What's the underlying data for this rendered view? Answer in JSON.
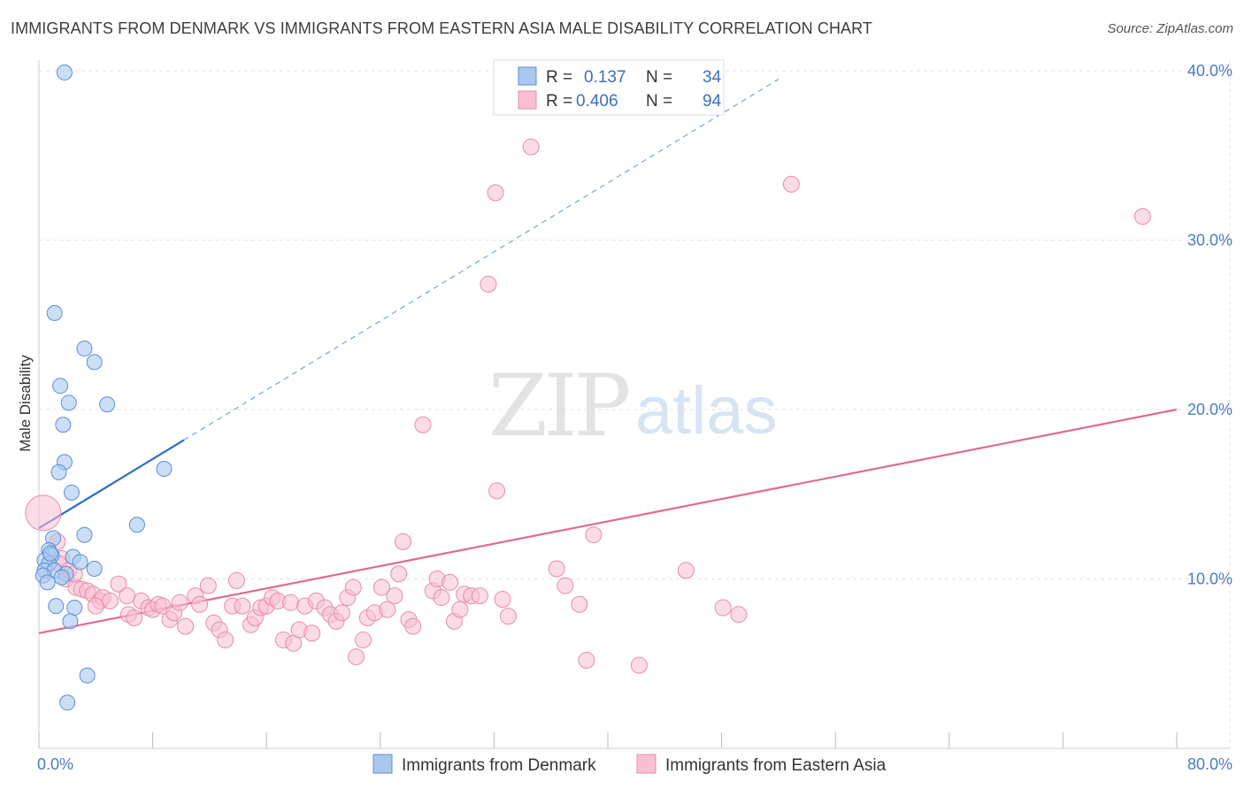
{
  "title": "IMMIGRANTS FROM DENMARK VS IMMIGRANTS FROM EASTERN ASIA MALE DISABILITY CORRELATION CHART",
  "source": "Source: ZipAtlas.com",
  "watermark": {
    "zip": "ZIP",
    "atlas": "atlas"
  },
  "legend": {
    "denmark": {
      "r_label": "R =",
      "r_value": "0.137",
      "n_label": "N =",
      "n_value": "34"
    },
    "eastasia": {
      "r_label": "R =",
      "r_value": "0.406",
      "n_label": "N =",
      "n_value": "94"
    }
  },
  "colors": {
    "denmark_fill": "#aac8ee",
    "denmark_stroke": "#5b8fd6",
    "denmark_line": "#2b6cc4",
    "eastasia_fill": "#f8c0d2",
    "eastasia_stroke": "#e88aaa",
    "eastasia_line": "#e06a94",
    "grid": "#e2e2e2",
    "tick_label": "#4a7cc2"
  },
  "chart_data": {
    "type": "scatter",
    "title": "IMMIGRANTS FROM DENMARK VS IMMIGRANTS FROM EASTERN ASIA MALE DISABILITY CORRELATION CHART",
    "xlabel": "",
    "ylabel": "Male Disability",
    "xlim": [
      0,
      80
    ],
    "ylim": [
      0,
      42
    ],
    "x_ticks": [
      0,
      8,
      16,
      24,
      32,
      40,
      48,
      56,
      64,
      72,
      80
    ],
    "x_tick_labels": {
      "0": "0.0%",
      "80": "80.0%"
    },
    "y_ticks": [
      10,
      20,
      30,
      40
    ],
    "y_tick_labels": [
      "10.0%",
      "20.0%",
      "30.0%",
      "40.0%"
    ],
    "grid": true,
    "legend_position": "top-center",
    "series": [
      {
        "name": "Immigrants from Denmark",
        "trend": {
          "x": [
            0,
            10.2
          ],
          "y": [
            13.0,
            18.2
          ],
          "extend_to": [
            52,
            39.5
          ]
        },
        "points": [
          [
            1.8,
            39.9
          ],
          [
            1.1,
            25.7
          ],
          [
            3.2,
            23.6
          ],
          [
            3.9,
            22.8
          ],
          [
            1.5,
            21.4
          ],
          [
            2.1,
            20.4
          ],
          [
            4.8,
            20.3
          ],
          [
            1.7,
            19.1
          ],
          [
            1.8,
            16.9
          ],
          [
            8.8,
            16.5
          ],
          [
            1.4,
            16.3
          ],
          [
            2.3,
            15.1
          ],
          [
            6.9,
            13.2
          ],
          [
            3.2,
            12.6
          ],
          [
            1.0,
            12.4
          ],
          [
            0.7,
            11.7
          ],
          [
            0.9,
            11.4
          ],
          [
            2.4,
            11.3
          ],
          [
            0.4,
            11.1
          ],
          [
            2.9,
            11.0
          ],
          [
            0.7,
            10.9
          ],
          [
            0.4,
            10.5
          ],
          [
            3.9,
            10.6
          ],
          [
            1.1,
            10.5
          ],
          [
            1.9,
            10.3
          ],
          [
            0.3,
            10.2
          ],
          [
            1.6,
            10.1
          ],
          [
            0.6,
            9.8
          ],
          [
            1.2,
            8.4
          ],
          [
            2.5,
            8.3
          ],
          [
            2.2,
            7.5
          ],
          [
            3.4,
            4.3
          ],
          [
            2.0,
            2.7
          ],
          [
            0.8,
            11.5
          ]
        ]
      },
      {
        "name": "Immigrants from Eastern Asia",
        "trend": {
          "x": [
            0,
            80
          ],
          "y": [
            6.8,
            20.0
          ]
        },
        "points": [
          [
            0.3,
            13.9
          ],
          [
            1.3,
            12.2
          ],
          [
            1.6,
            11.2
          ],
          [
            1.4,
            10.9
          ],
          [
            2.1,
            10.5
          ],
          [
            1.9,
            10.0
          ],
          [
            2.6,
            9.5
          ],
          [
            3.0,
            9.4
          ],
          [
            3.4,
            9.3
          ],
          [
            3.8,
            9.1
          ],
          [
            4.3,
            8.7
          ],
          [
            4.5,
            8.9
          ],
          [
            4.0,
            8.4
          ],
          [
            5.0,
            8.7
          ],
          [
            5.6,
            9.7
          ],
          [
            6.2,
            9.0
          ],
          [
            6.3,
            7.9
          ],
          [
            6.7,
            7.7
          ],
          [
            7.2,
            8.7
          ],
          [
            7.7,
            8.3
          ],
          [
            8.0,
            8.2
          ],
          [
            8.4,
            8.5
          ],
          [
            8.7,
            8.4
          ],
          [
            9.2,
            7.6
          ],
          [
            9.5,
            8.0
          ],
          [
            9.9,
            8.6
          ],
          [
            10.3,
            7.2
          ],
          [
            11.0,
            9.0
          ],
          [
            11.3,
            8.5
          ],
          [
            11.9,
            9.6
          ],
          [
            12.3,
            7.4
          ],
          [
            12.7,
            7.0
          ],
          [
            13.1,
            6.4
          ],
          [
            13.6,
            8.4
          ],
          [
            13.9,
            9.9
          ],
          [
            14.3,
            8.4
          ],
          [
            14.9,
            7.3
          ],
          [
            15.2,
            7.7
          ],
          [
            15.6,
            8.3
          ],
          [
            16.0,
            8.4
          ],
          [
            16.4,
            8.9
          ],
          [
            16.8,
            8.7
          ],
          [
            17.2,
            6.4
          ],
          [
            17.7,
            8.6
          ],
          [
            17.9,
            6.2
          ],
          [
            18.3,
            7.0
          ],
          [
            18.7,
            8.4
          ],
          [
            19.2,
            6.8
          ],
          [
            19.5,
            8.7
          ],
          [
            20.1,
            8.3
          ],
          [
            20.5,
            7.9
          ],
          [
            20.9,
            7.5
          ],
          [
            21.3,
            8.0
          ],
          [
            21.7,
            8.9
          ],
          [
            22.1,
            9.5
          ],
          [
            22.3,
            5.4
          ],
          [
            22.8,
            6.4
          ],
          [
            23.1,
            7.7
          ],
          [
            23.6,
            8.0
          ],
          [
            24.1,
            9.5
          ],
          [
            24.5,
            8.2
          ],
          [
            25.0,
            9.0
          ],
          [
            25.3,
            10.3
          ],
          [
            25.6,
            12.2
          ],
          [
            26.0,
            7.6
          ],
          [
            26.3,
            7.2
          ],
          [
            27.0,
            19.1
          ],
          [
            27.7,
            9.3
          ],
          [
            28.0,
            10.0
          ],
          [
            28.3,
            8.9
          ],
          [
            28.9,
            9.8
          ],
          [
            29.2,
            7.5
          ],
          [
            29.6,
            8.2
          ],
          [
            29.9,
            9.1
          ],
          [
            30.4,
            9.0
          ],
          [
            31.0,
            9.0
          ],
          [
            31.6,
            27.4
          ],
          [
            32.1,
            32.8
          ],
          [
            32.2,
            15.2
          ],
          [
            32.6,
            8.8
          ],
          [
            33.0,
            7.8
          ],
          [
            34.6,
            35.5
          ],
          [
            36.4,
            10.6
          ],
          [
            37.0,
            9.6
          ],
          [
            38.0,
            8.5
          ],
          [
            38.5,
            5.2
          ],
          [
            39.0,
            12.6
          ],
          [
            42.2,
            4.9
          ],
          [
            45.5,
            10.5
          ],
          [
            48.1,
            8.3
          ],
          [
            49.2,
            7.9
          ],
          [
            52.9,
            33.3
          ],
          [
            77.6,
            31.4
          ],
          [
            2.5,
            10.3
          ]
        ]
      }
    ]
  },
  "bottom_legend": {
    "denmark_label": "Immigrants from Denmark",
    "eastasia_label": "Immigrants from Eastern Asia"
  }
}
